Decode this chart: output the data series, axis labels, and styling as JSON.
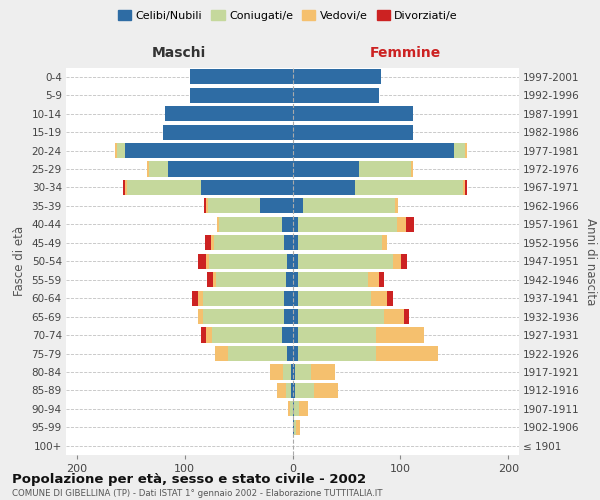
{
  "age_groups": [
    "100+",
    "95-99",
    "90-94",
    "85-89",
    "80-84",
    "75-79",
    "70-74",
    "65-69",
    "60-64",
    "55-59",
    "50-54",
    "45-49",
    "40-44",
    "35-39",
    "30-34",
    "25-29",
    "20-24",
    "15-19",
    "10-14",
    "5-9",
    "0-4"
  ],
  "birth_years": [
    "≤ 1901",
    "1902-1906",
    "1907-1911",
    "1912-1916",
    "1917-1921",
    "1922-1926",
    "1927-1931",
    "1932-1936",
    "1937-1941",
    "1942-1946",
    "1947-1951",
    "1952-1956",
    "1957-1961",
    "1962-1966",
    "1967-1971",
    "1972-1976",
    "1977-1981",
    "1982-1986",
    "1987-1991",
    "1992-1996",
    "1997-2001"
  ],
  "maschi": {
    "celibi": [
      0,
      0,
      0,
      1,
      1,
      5,
      10,
      8,
      8,
      6,
      5,
      8,
      10,
      30,
      85,
      115,
      155,
      120,
      118,
      95,
      95
    ],
    "coniugati": [
      0,
      0,
      2,
      5,
      8,
      55,
      65,
      75,
      75,
      65,
      72,
      65,
      58,
      48,
      68,
      18,
      8,
      0,
      0,
      0,
      0
    ],
    "vedovi": [
      0,
      0,
      2,
      8,
      12,
      12,
      5,
      5,
      5,
      3,
      3,
      3,
      2,
      2,
      2,
      2,
      2,
      0,
      0,
      0,
      0
    ],
    "divorziati": [
      0,
      0,
      0,
      0,
      0,
      0,
      5,
      0,
      5,
      5,
      8,
      5,
      0,
      2,
      2,
      0,
      0,
      0,
      0,
      0,
      0
    ]
  },
  "femmine": {
    "nubili": [
      0,
      1,
      1,
      2,
      2,
      5,
      5,
      5,
      5,
      5,
      5,
      5,
      5,
      10,
      58,
      62,
      150,
      112,
      112,
      80,
      82
    ],
    "coniugate": [
      0,
      2,
      5,
      18,
      15,
      72,
      72,
      80,
      68,
      65,
      88,
      78,
      92,
      85,
      100,
      48,
      10,
      0,
      0,
      0,
      0
    ],
    "vedove": [
      0,
      4,
      8,
      22,
      22,
      58,
      45,
      18,
      15,
      10,
      8,
      5,
      8,
      3,
      2,
      2,
      2,
      0,
      0,
      0,
      0
    ],
    "divorziate": [
      0,
      0,
      0,
      0,
      0,
      0,
      0,
      5,
      5,
      5,
      5,
      0,
      8,
      0,
      2,
      0,
      0,
      0,
      0,
      0,
      0
    ]
  },
  "colors": {
    "celibi": "#2e6ca4",
    "coniugati": "#c5d89c",
    "vedovi": "#f5c06e",
    "divorziati": "#cc2222"
  },
  "xlim": 210,
  "title": "Popolazione per età, sesso e stato civile - 2002",
  "subtitle": "COMUNE DI GIBELLINA (TP) - Dati ISTAT 1° gennaio 2002 - Elaborazione TUTTITALIA.IT",
  "ylabel_left": "Fasce di età",
  "ylabel_right": "Anni di nascita",
  "xlabel_maschi": "Maschi",
  "xlabel_femmine": "Femmine",
  "bg_color": "#eeeeee",
  "plot_bg_color": "#ffffff",
  "legend_labels": [
    "Celibi/Nubili",
    "Coniugati/e",
    "Vedovi/e",
    "Divorziati/e"
  ]
}
